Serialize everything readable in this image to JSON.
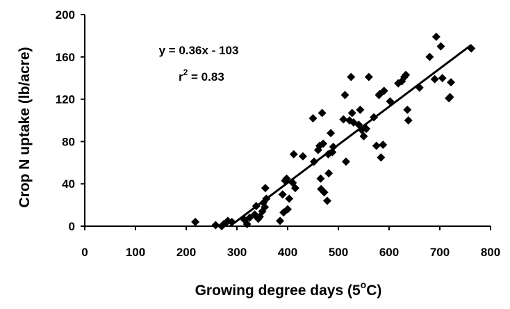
{
  "chart_data": {
    "type": "scatter",
    "xlabel": "Growing degree days (5",
    "xlabel_sup": "o",
    "xlabel_end": "C)",
    "ylabel": "Crop N uptake (lb/acre)",
    "xlim": [
      0,
      800
    ],
    "ylim": [
      0,
      200
    ],
    "xticks": [
      "0",
      "100",
      "200",
      "300",
      "400",
      "500",
      "600",
      "700",
      "800"
    ],
    "yticks": [
      "0",
      "40",
      "80",
      "120",
      "160",
      "200"
    ],
    "grid": false,
    "legend": "none",
    "marker_color": "#000000",
    "annotations": {
      "equation": "y = 0.36x - 103",
      "r2_prefix": "r",
      "r2_sup": "2",
      "r2_value": " = 0.83"
    },
    "trendline": {
      "slope": 0.36,
      "intercept": -103,
      "x_start": 286,
      "x_end": 762
    },
    "points": [
      [
        218,
        4
      ],
      [
        258,
        1
      ],
      [
        270,
        0
      ],
      [
        274,
        2
      ],
      [
        278,
        3
      ],
      [
        282,
        5
      ],
      [
        290,
        4
      ],
      [
        315,
        6
      ],
      [
        320,
        2
      ],
      [
        325,
        8
      ],
      [
        335,
        11
      ],
      [
        338,
        19
      ],
      [
        342,
        7
      ],
      [
        345,
        9
      ],
      [
        350,
        14
      ],
      [
        352,
        22
      ],
      [
        355,
        18
      ],
      [
        356,
        36
      ],
      [
        358,
        26
      ],
      [
        385,
        5
      ],
      [
        390,
        30
      ],
      [
        392,
        13
      ],
      [
        395,
        43
      ],
      [
        398,
        45
      ],
      [
        400,
        16
      ],
      [
        403,
        26
      ],
      [
        410,
        41
      ],
      [
        412,
        68
      ],
      [
        415,
        36
      ],
      [
        430,
        66
      ],
      [
        450,
        102
      ],
      [
        452,
        61
      ],
      [
        460,
        72
      ],
      [
        463,
        76
      ],
      [
        465,
        45
      ],
      [
        466,
        35
      ],
      [
        468,
        107
      ],
      [
        470,
        78
      ],
      [
        472,
        32
      ],
      [
        478,
        24
      ],
      [
        480,
        68
      ],
      [
        481,
        50
      ],
      [
        485,
        88
      ],
      [
        488,
        70
      ],
      [
        490,
        75
      ],
      [
        510,
        101
      ],
      [
        513,
        124
      ],
      [
        515,
        61
      ],
      [
        522,
        100
      ],
      [
        525,
        141
      ],
      [
        527,
        107
      ],
      [
        530,
        98
      ],
      [
        540,
        96
      ],
      [
        543,
        110
      ],
      [
        546,
        91
      ],
      [
        550,
        85
      ],
      [
        555,
        92
      ],
      [
        560,
        141
      ],
      [
        570,
        103
      ],
      [
        575,
        76
      ],
      [
        580,
        124
      ],
      [
        582,
        125
      ],
      [
        584,
        65
      ],
      [
        588,
        77
      ],
      [
        590,
        128
      ],
      [
        602,
        118
      ],
      [
        618,
        135
      ],
      [
        625,
        137
      ],
      [
        630,
        141
      ],
      [
        633,
        143
      ],
      [
        636,
        110
      ],
      [
        638,
        100
      ],
      [
        660,
        131
      ],
      [
        680,
        160
      ],
      [
        690,
        139
      ],
      [
        693,
        179
      ],
      [
        702,
        170
      ],
      [
        705,
        140
      ],
      [
        718,
        121
      ],
      [
        720,
        122
      ],
      [
        722,
        136
      ],
      [
        762,
        168
      ]
    ]
  }
}
